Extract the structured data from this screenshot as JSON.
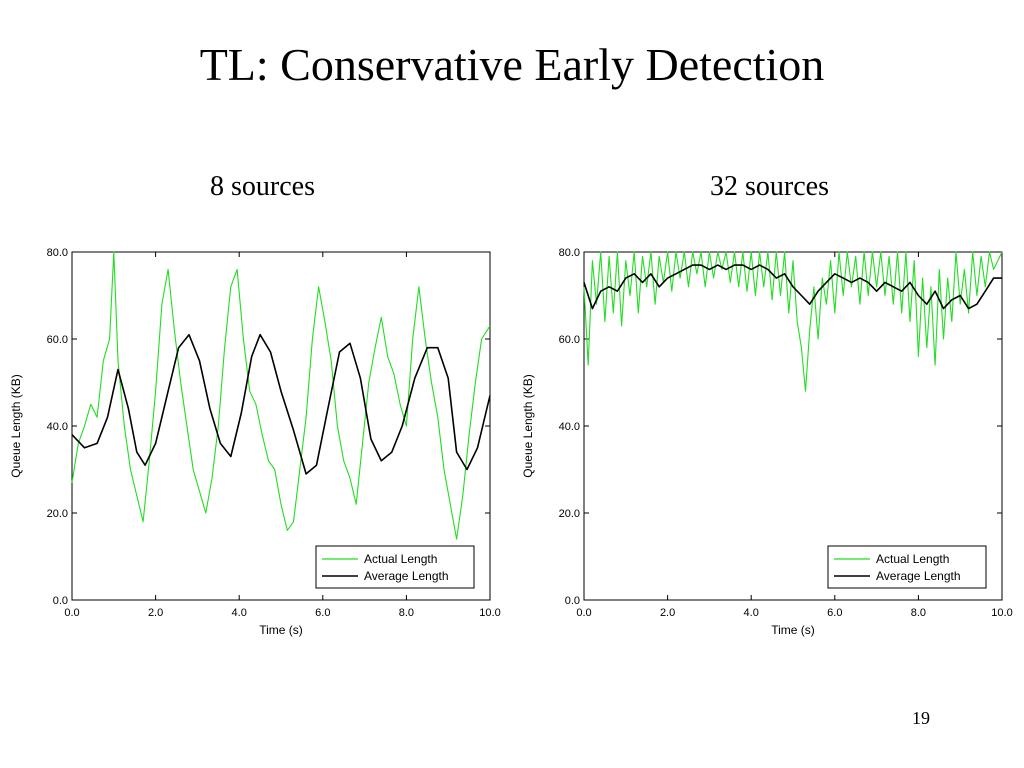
{
  "slide": {
    "title": "TL: Conservative Early Detection",
    "page_number": "19"
  },
  "colors": {
    "actual": "#22dd22",
    "average": "#000000"
  },
  "chart_data": [
    {
      "type": "line",
      "caption": "8 sources",
      "xlabel": "Time (s)",
      "ylabel": "Queue Length (KB)",
      "xlim": [
        0,
        10
      ],
      "ylim": [
        0,
        80
      ],
      "xticks": [
        "0.0",
        "2.0",
        "4.0",
        "6.0",
        "8.0",
        "10.0"
      ],
      "yticks": [
        "0.0",
        "20.0",
        "40.0",
        "60.0",
        "80.0"
      ],
      "legend_position": "bottom-right",
      "series": [
        {
          "name": "Actual Length",
          "color": "#22dd22",
          "x": [
            0.0,
            0.15,
            0.3,
            0.45,
            0.6,
            0.75,
            0.9,
            1.0,
            1.1,
            1.25,
            1.4,
            1.55,
            1.7,
            1.85,
            2.0,
            2.15,
            2.3,
            2.45,
            2.6,
            2.75,
            2.9,
            3.05,
            3.2,
            3.35,
            3.5,
            3.65,
            3.8,
            3.95,
            4.1,
            4.25,
            4.4,
            4.55,
            4.7,
            4.85,
            5.0,
            5.15,
            5.3,
            5.45,
            5.6,
            5.75,
            5.9,
            6.05,
            6.2,
            6.35,
            6.5,
            6.65,
            6.8,
            6.95,
            7.1,
            7.25,
            7.4,
            7.55,
            7.7,
            7.85,
            8.0,
            8.15,
            8.3,
            8.45,
            8.6,
            8.75,
            8.9,
            9.05,
            9.2,
            9.35,
            9.5,
            9.65,
            9.8,
            10.0
          ],
          "y": [
            27,
            36,
            40,
            45,
            42,
            55,
            60,
            80,
            55,
            40,
            30,
            24,
            18,
            32,
            48,
            68,
            76,
            62,
            50,
            40,
            30,
            25,
            20,
            28,
            40,
            58,
            72,
            76,
            60,
            48,
            45,
            38,
            32,
            30,
            22,
            16,
            18,
            30,
            42,
            60,
            72,
            64,
            55,
            40,
            32,
            28,
            22,
            36,
            50,
            58,
            65,
            56,
            52,
            45,
            40,
            60,
            72,
            60,
            50,
            42,
            30,
            22,
            14,
            24,
            38,
            50,
            60,
            63
          ]
        },
        {
          "name": "Average Length",
          "color": "#000000",
          "x": [
            0.0,
            0.3,
            0.6,
            0.85,
            1.1,
            1.35,
            1.55,
            1.75,
            2.0,
            2.3,
            2.55,
            2.8,
            3.05,
            3.3,
            3.55,
            3.8,
            4.05,
            4.3,
            4.5,
            4.75,
            5.0,
            5.3,
            5.6,
            5.85,
            6.1,
            6.4,
            6.65,
            6.9,
            7.15,
            7.4,
            7.65,
            7.9,
            8.2,
            8.5,
            8.75,
            9.0,
            9.2,
            9.45,
            9.7,
            10.0
          ],
          "y": [
            38,
            35,
            36,
            42,
            53,
            44,
            34,
            31,
            36,
            48,
            58,
            61,
            55,
            44,
            36,
            33,
            43,
            56,
            61,
            57,
            48,
            39,
            29,
            31,
            43,
            57,
            59,
            51,
            37,
            32,
            34,
            40,
            51,
            58,
            58,
            51,
            34,
            30,
            35,
            47
          ]
        }
      ]
    },
    {
      "type": "line",
      "caption": "32 sources",
      "xlabel": "Time (s)",
      "ylabel": "Queue Length (KB)",
      "xlim": [
        0,
        10
      ],
      "ylim": [
        0,
        80
      ],
      "xticks": [
        "0.0",
        "2.0",
        "4.0",
        "6.0",
        "8.0",
        "10.0"
      ],
      "yticks": [
        "0.0",
        "20.0",
        "40.0",
        "60.0",
        "80.0"
      ],
      "legend_position": "bottom-right",
      "series": [
        {
          "name": "Actual Length",
          "color": "#22dd22",
          "x": [
            0.0,
            0.1,
            0.2,
            0.3,
            0.4,
            0.5,
            0.6,
            0.7,
            0.8,
            0.9,
            1.0,
            1.1,
            1.2,
            1.3,
            1.4,
            1.5,
            1.6,
            1.7,
            1.8,
            1.9,
            2.0,
            2.1,
            2.2,
            2.3,
            2.4,
            2.5,
            2.6,
            2.7,
            2.8,
            2.9,
            3.0,
            3.1,
            3.2,
            3.3,
            3.4,
            3.5,
            3.6,
            3.7,
            3.8,
            3.9,
            4.0,
            4.1,
            4.2,
            4.3,
            4.4,
            4.5,
            4.6,
            4.7,
            4.8,
            4.9,
            5.0,
            5.1,
            5.2,
            5.3,
            5.4,
            5.5,
            5.6,
            5.7,
            5.8,
            5.9,
            6.0,
            6.1,
            6.2,
            6.3,
            6.4,
            6.5,
            6.6,
            6.7,
            6.8,
            6.9,
            7.0,
            7.1,
            7.2,
            7.3,
            7.4,
            7.5,
            7.6,
            7.7,
            7.8,
            7.9,
            8.0,
            8.1,
            8.2,
            8.3,
            8.4,
            8.5,
            8.6,
            8.7,
            8.8,
            8.9,
            9.0,
            9.1,
            9.2,
            9.3,
            9.4,
            9.5,
            9.6,
            9.7,
            9.8,
            9.9,
            10.0
          ],
          "y": [
            72,
            54,
            78,
            68,
            80,
            64,
            79,
            66,
            80,
            63,
            78,
            70,
            80,
            66,
            79,
            72,
            80,
            68,
            79,
            73,
            80,
            71,
            80,
            74,
            80,
            72,
            80,
            75,
            80,
            72,
            80,
            74,
            80,
            76,
            80,
            73,
            80,
            72,
            80,
            71,
            80,
            70,
            80,
            72,
            80,
            69,
            80,
            70,
            80,
            66,
            78,
            64,
            58,
            48,
            62,
            72,
            60,
            74,
            68,
            78,
            66,
            80,
            70,
            80,
            72,
            79,
            68,
            80,
            70,
            80,
            72,
            80,
            70,
            79,
            68,
            80,
            66,
            80,
            64,
            78,
            56,
            74,
            58,
            72,
            54,
            76,
            60,
            74,
            64,
            80,
            68,
            76,
            66,
            80,
            70,
            79,
            72,
            80,
            76,
            78,
            80
          ]
        },
        {
          "name": "Average Length",
          "color": "#000000",
          "x": [
            0.0,
            0.2,
            0.4,
            0.6,
            0.8,
            1.0,
            1.2,
            1.4,
            1.6,
            1.8,
            2.0,
            2.2,
            2.4,
            2.6,
            2.8,
            3.0,
            3.2,
            3.4,
            3.6,
            3.8,
            4.0,
            4.2,
            4.4,
            4.6,
            4.8,
            5.0,
            5.2,
            5.4,
            5.6,
            5.8,
            6.0,
            6.2,
            6.4,
            6.6,
            6.8,
            7.0,
            7.2,
            7.4,
            7.6,
            7.8,
            8.0,
            8.2,
            8.4,
            8.6,
            8.8,
            9.0,
            9.2,
            9.4,
            9.6,
            9.8,
            10.0
          ],
          "y": [
            73,
            67,
            71,
            72,
            71,
            74,
            75,
            73,
            75,
            72,
            74,
            75,
            76,
            77,
            77,
            76,
            77,
            76,
            77,
            77,
            76,
            77,
            76,
            74,
            75,
            72,
            70,
            68,
            71,
            73,
            75,
            74,
            73,
            74,
            73,
            71,
            73,
            72,
            71,
            73,
            70,
            68,
            71,
            67,
            69,
            70,
            67,
            68,
            71,
            74,
            74
          ]
        }
      ]
    }
  ]
}
